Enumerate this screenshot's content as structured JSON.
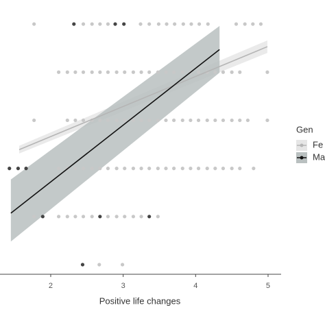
{
  "chart_data": {
    "type": "scatter",
    "x_label": "Positive life changes",
    "xlim": [
      1.3,
      5.18
    ],
    "xticks": [
      2,
      3,
      4,
      5
    ],
    "ylim": [
      0.8,
      6.5
    ],
    "points": [
      {
        "color": "#c8c8c8",
        "y": 6,
        "x": [
          1.77,
          2.45,
          2.57,
          2.68,
          2.79,
          3.24,
          3.36,
          3.49,
          3.6,
          3.71,
          3.83,
          3.94,
          4.05,
          4.17,
          4.56,
          4.68,
          4.79,
          4.9
        ]
      },
      {
        "color": "#c8c8c8",
        "y": 5,
        "x": [
          2.11,
          2.23,
          2.34,
          2.45,
          2.57,
          2.68,
          2.79,
          2.91,
          3.02,
          3.14,
          3.25,
          3.36,
          3.48,
          3.59,
          3.7,
          3.82,
          3.93,
          4.04,
          4.16,
          4.27,
          4.38,
          4.5,
          4.61,
          4.99
        ]
      },
      {
        "color": "#c8c8c8",
        "y": 4,
        "x": [
          1.77,
          2.23,
          2.34,
          2.45,
          2.57,
          2.68,
          2.79,
          2.91,
          3.02,
          3.14,
          3.25,
          3.36,
          3.48,
          3.59,
          3.7,
          3.82,
          3.93,
          4.04,
          4.16,
          4.27,
          4.38,
          4.5,
          4.61,
          4.72,
          4.99
        ]
      },
      {
        "color": "#c8c8c8",
        "y": 3,
        "x": [
          2.11,
          2.23,
          2.34,
          2.45,
          2.57,
          2.68,
          2.79,
          2.91,
          3.02,
          3.14,
          3.25,
          3.36,
          3.48,
          3.59,
          3.7,
          3.82,
          3.93,
          4.04,
          4.16,
          4.27,
          4.38,
          4.5,
          4.61,
          4.8
        ]
      },
      {
        "color": "#c8c8c8",
        "y": 2,
        "x": [
          1.77,
          2.11,
          2.23,
          2.34,
          2.45,
          2.57,
          2.79,
          2.91,
          3.02,
          3.14,
          3.25,
          3.48
        ]
      },
      {
        "color": "#c8c8c8",
        "y": 1,
        "x": [
          2.67,
          2.99
        ]
      },
      {
        "color": "#444444",
        "y": 6,
        "x": [
          2.32,
          2.89,
          3.01
        ]
      },
      {
        "color": "#444444",
        "y": 3,
        "x": [
          1.43,
          1.55,
          1.66
        ]
      },
      {
        "color": "#444444",
        "y": 2,
        "x": [
          1.89,
          2.68,
          3.36
        ]
      },
      {
        "color": "#444444",
        "y": 1,
        "x": [
          2.44
        ]
      }
    ],
    "legend_title": "Gen",
    "series": [
      {
        "name": "Fe",
        "color": "#b5b5b5",
        "band_color": "#e6e6e6",
        "x": [
          1.565,
          4.99
        ],
        "values": [
          3.39,
          5.53
        ],
        "lower": [
          3.31,
          5.4
        ],
        "upper": [
          3.47,
          5.66
        ]
      },
      {
        "name": "Ma",
        "color": "#111111",
        "band_color": "#b9c0c0",
        "x": [
          1.45,
          4.33
        ],
        "values": [
          2.07,
          5.47
        ],
        "lower": [
          1.48,
          4.99
        ],
        "upper": [
          2.77,
          5.96
        ]
      }
    ]
  }
}
